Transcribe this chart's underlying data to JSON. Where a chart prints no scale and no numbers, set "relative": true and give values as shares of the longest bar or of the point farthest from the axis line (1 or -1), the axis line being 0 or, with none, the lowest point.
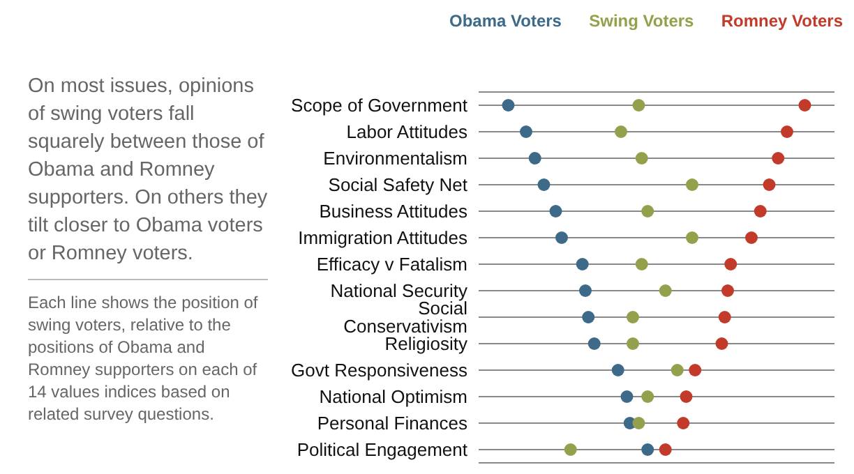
{
  "chart_data": {
    "type": "scatter",
    "title": "On most issues, opinions of swing voters fall squarely between those of Obama and Romney supporters. On others they tilt closer to Obama voters or Romney voters.",
    "annotations": [
      "Each line shows the position of swing voters, relative to the positions of Obama and Romney supporters on each of 14 values indices based on related survey questions."
    ],
    "categories": [
      "Scope of Government",
      "Labor Attitudes",
      "Environmentalism",
      "Social Safety Net",
      "Business Attitudes",
      "Immigration Attitudes",
      "Efficacy v Fatalism",
      "National Security",
      "Social Conservativism",
      "Religiosity",
      "Govt Responsiveness",
      "National Optimism",
      "Personal Finances",
      "Political Engagement"
    ],
    "orientation": "horizontal",
    "relative": true,
    "grid": "y",
    "legend": "top",
    "marker": "circle",
    "series": [
      {
        "name": "Obama Voters",
        "color": "#3e6a8a",
        "values": [
          0,
          0.06,
          0.09,
          0.12,
          0.16,
          0.18,
          0.25,
          0.26,
          0.27,
          0.29,
          0.37,
          0.4,
          0.41,
          0.47
        ]
      },
      {
        "name": "Swing Voters",
        "color": "#95a04c",
        "values": [
          0.44,
          0.38,
          0.45,
          0.62,
          0.47,
          0.62,
          0.45,
          0.53,
          0.42,
          0.42,
          0.57,
          0.47,
          0.44,
          0.21
        ]
      },
      {
        "name": "Romney Voters",
        "color": "#c23b2a",
        "values": [
          1,
          0.94,
          0.91,
          0.88,
          0.85,
          0.82,
          0.75,
          0.74,
          0.73,
          0.72,
          0.63,
          0.6,
          0.59,
          0.53
        ]
      }
    ]
  }
}
